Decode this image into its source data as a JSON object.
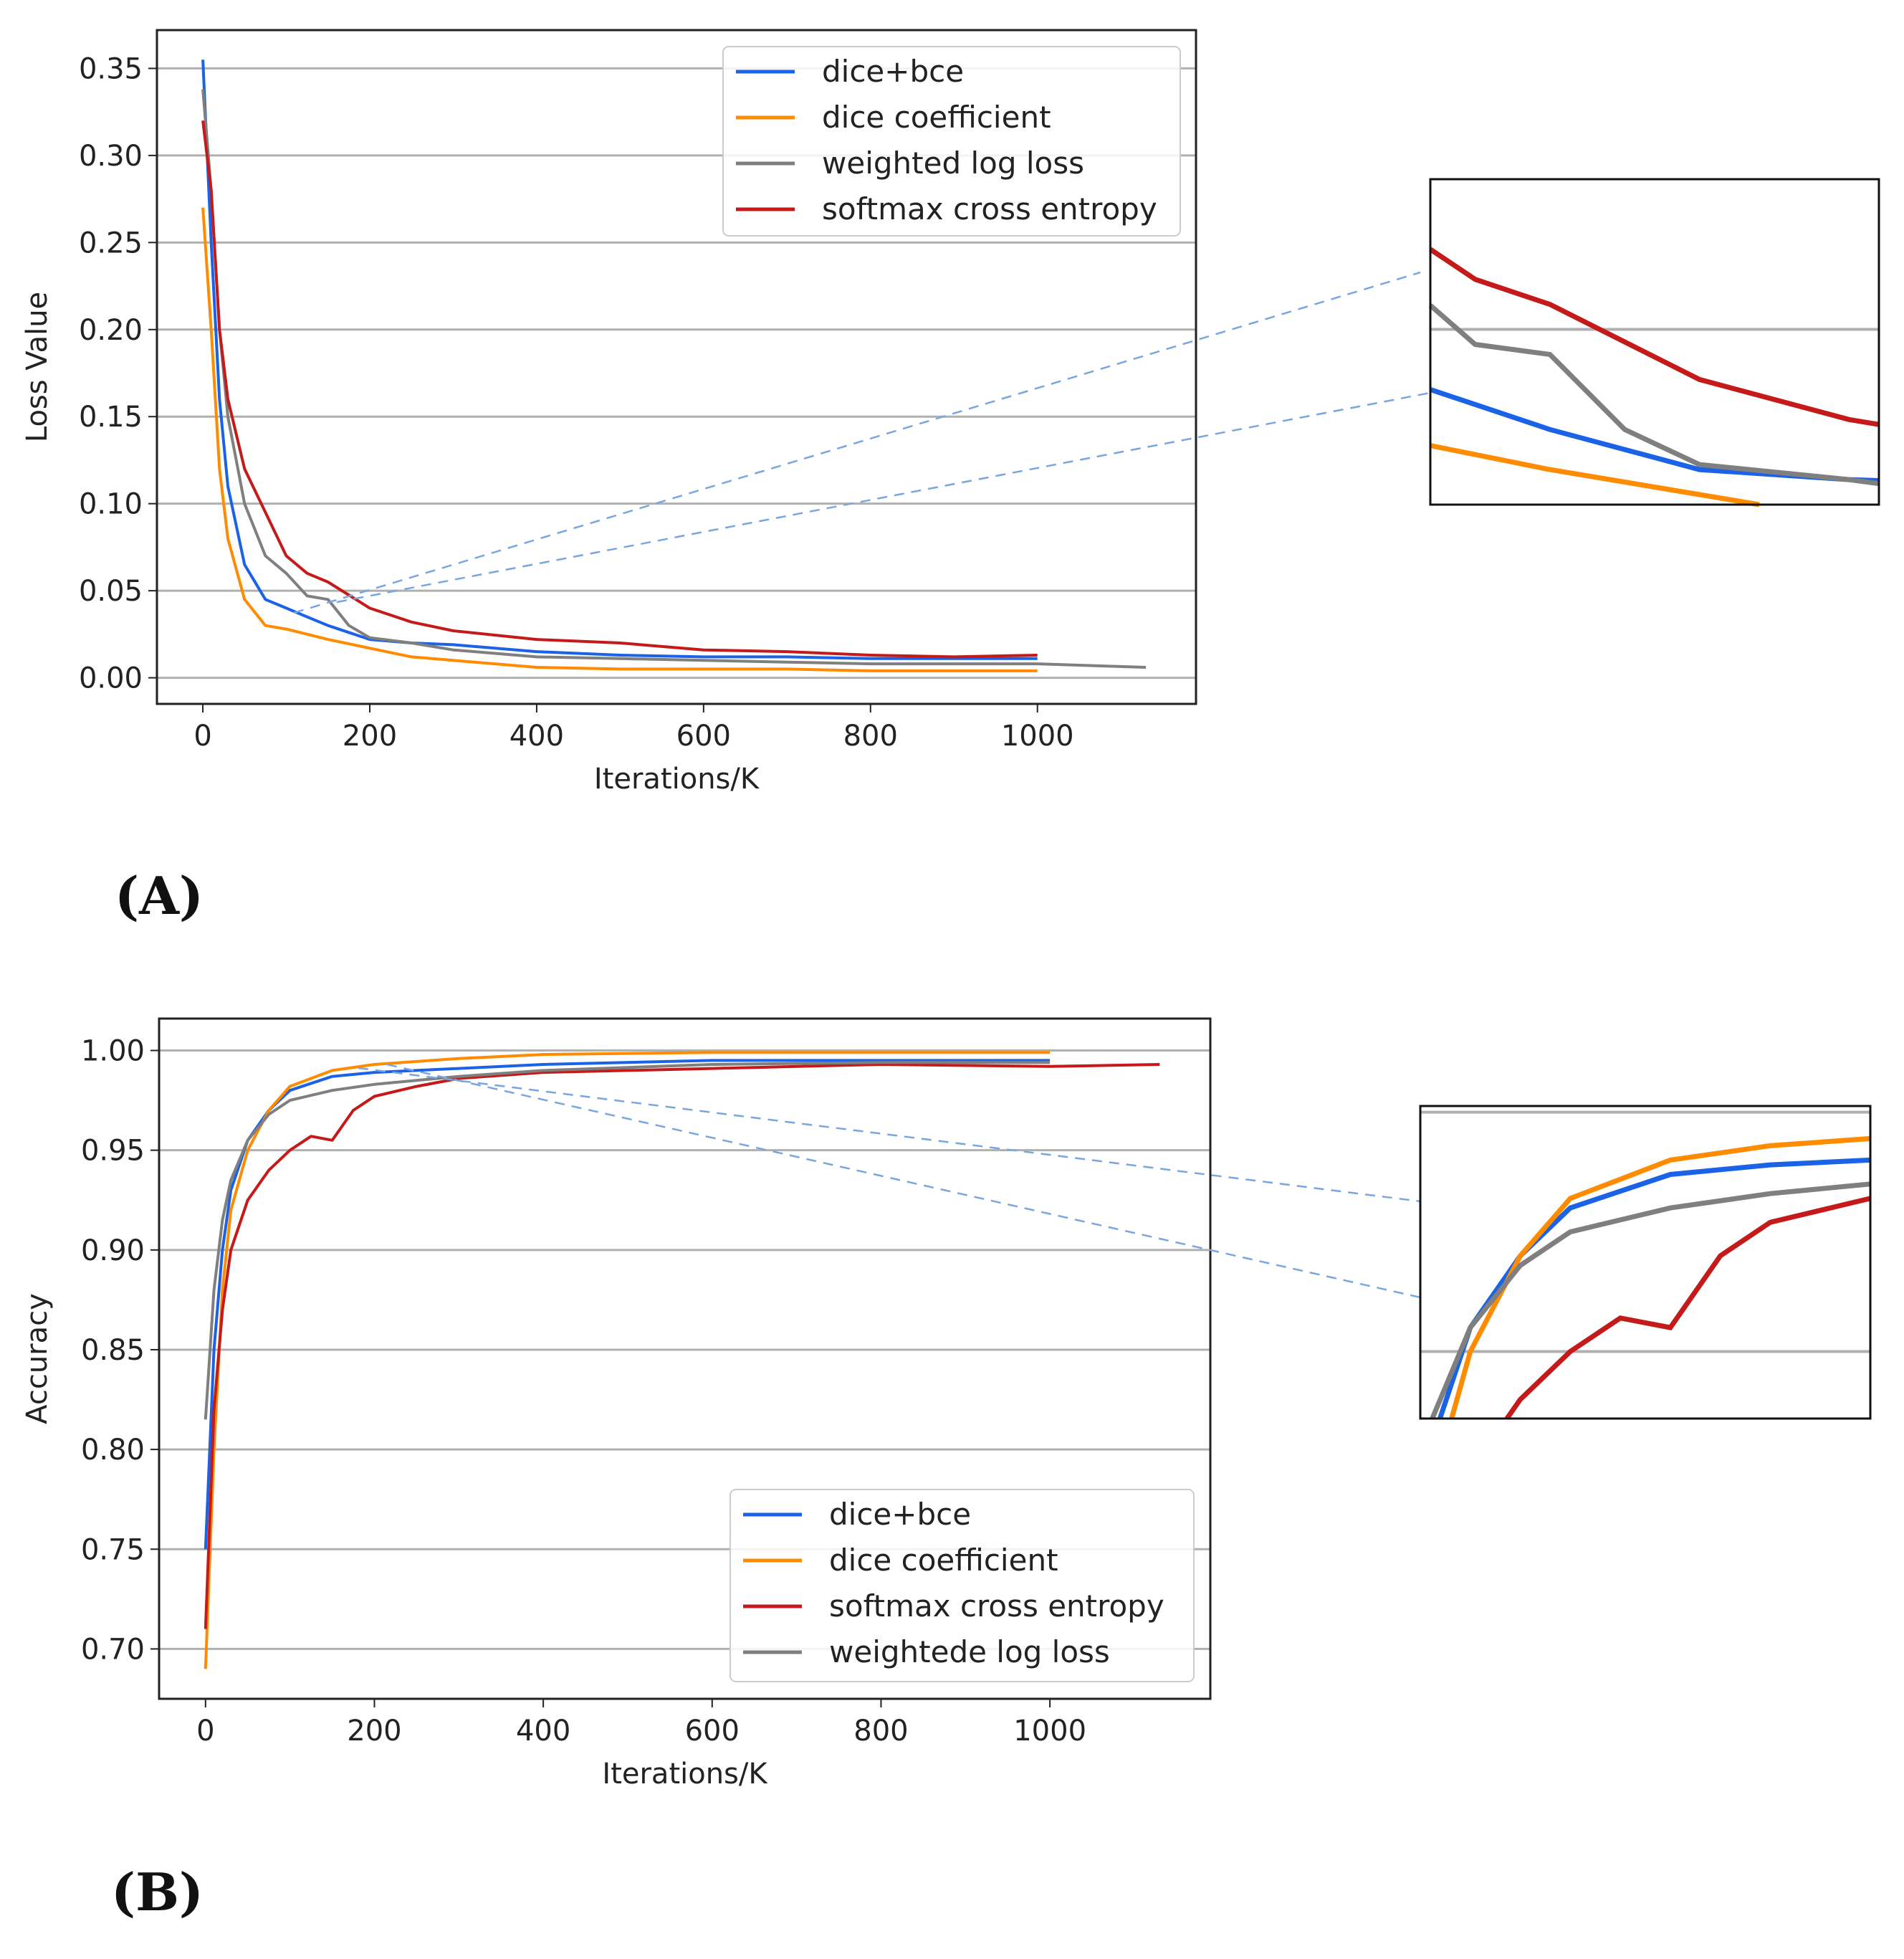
{
  "chart_data": [
    {
      "panel_label": "(A)",
      "type": "line",
      "xlabel": "Iterations/K",
      "ylabel": "Loss Value",
      "xlim": [
        -55,
        1190
      ],
      "ylim": [
        -0.015,
        0.372
      ],
      "xticks": [
        0,
        200,
        400,
        600,
        800,
        1000
      ],
      "yticks": [
        0.0,
        0.05,
        0.1,
        0.15,
        0.2,
        0.25,
        0.3,
        0.35
      ],
      "ytick_labels": [
        "0.00",
        "0.05",
        "0.10",
        "0.15",
        "0.20",
        "0.25",
        "0.30",
        "0.35"
      ],
      "grid": "horizontal",
      "legend": "top-right",
      "inset": {
        "xlim": [
          110,
          260
        ],
        "ylim": [
          0.015,
          0.08
        ],
        "position": "right, outside"
      },
      "series": [
        {
          "name": "dice+bce",
          "color": "#1a62e6",
          "x": [
            0,
            10,
            20,
            30,
            50,
            75,
            100,
            125,
            150,
            200,
            250,
            300,
            400,
            500,
            600,
            700,
            800,
            900,
            1000
          ],
          "y": [
            0.355,
            0.25,
            0.16,
            0.11,
            0.065,
            0.045,
            0.04,
            0.035,
            0.03,
            0.022,
            0.02,
            0.019,
            0.015,
            0.013,
            0.012,
            0.012,
            0.011,
            0.011,
            0.011
          ]
        },
        {
          "name": "dice coefficient",
          "color": "#ff8c00",
          "x": [
            0,
            10,
            20,
            30,
            50,
            75,
            100,
            150,
            200,
            250,
            300,
            400,
            500,
            600,
            700,
            800,
            900,
            1000
          ],
          "y": [
            0.27,
            0.2,
            0.12,
            0.08,
            0.045,
            0.03,
            0.028,
            0.022,
            0.017,
            0.012,
            0.01,
            0.006,
            0.005,
            0.005,
            0.005,
            0.004,
            0.004,
            0.004
          ]
        },
        {
          "name": "weighted log loss",
          "color": "#7f7f7f",
          "x": [
            0,
            10,
            20,
            30,
            50,
            75,
            100,
            125,
            150,
            175,
            200,
            250,
            300,
            400,
            500,
            600,
            700,
            800,
            900,
            1000,
            1130
          ],
          "y": [
            0.338,
            0.28,
            0.2,
            0.15,
            0.1,
            0.07,
            0.06,
            0.047,
            0.045,
            0.03,
            0.023,
            0.02,
            0.016,
            0.012,
            0.011,
            0.01,
            0.009,
            0.008,
            0.008,
            0.008,
            0.006
          ]
        },
        {
          "name": "softmax cross entropy",
          "color": "#c41a1a",
          "x": [
            0,
            10,
            20,
            30,
            50,
            75,
            100,
            125,
            150,
            200,
            250,
            300,
            400,
            500,
            600,
            700,
            800,
            900,
            1000
          ],
          "y": [
            0.32,
            0.28,
            0.2,
            0.16,
            0.12,
            0.095,
            0.07,
            0.06,
            0.055,
            0.04,
            0.032,
            0.027,
            0.022,
            0.02,
            0.016,
            0.015,
            0.013,
            0.012,
            0.013
          ]
        }
      ]
    },
    {
      "panel_label": "(B)",
      "type": "line",
      "xlabel": "Iterations/K",
      "ylabel": "Accuracy",
      "xlim": [
        -55,
        1190
      ],
      "ylim": [
        0.675,
        1.016
      ],
      "xticks": [
        0,
        200,
        400,
        600,
        800,
        1000
      ],
      "yticks": [
        0.7,
        0.75,
        0.8,
        0.85,
        0.9,
        0.95,
        1.0
      ],
      "ytick_labels": [
        "0.70",
        "0.75",
        "0.80",
        "0.85",
        "0.90",
        "0.95",
        "1.00"
      ],
      "grid": "horizontal",
      "legend": "bottom-right",
      "inset": {
        "xlim": [
          25,
          250
        ],
        "ylim": [
          0.936,
          1.0013
        ],
        "position": "right, outside"
      },
      "series": [
        {
          "name": "dice+bce",
          "color": "#1a62e6",
          "x": [
            0,
            10,
            20,
            30,
            50,
            75,
            100,
            150,
            200,
            300,
            400,
            600,
            800,
            1000
          ],
          "y": [
            0.75,
            0.85,
            0.9,
            0.93,
            0.955,
            0.97,
            0.98,
            0.987,
            0.989,
            0.991,
            0.993,
            0.995,
            0.995,
            0.995
          ]
        },
        {
          "name": "dice coefficient",
          "color": "#ff8c00",
          "x": [
            0,
            10,
            20,
            30,
            50,
            75,
            100,
            150,
            200,
            300,
            400,
            600,
            800,
            1000
          ],
          "y": [
            0.69,
            0.8,
            0.88,
            0.92,
            0.95,
            0.97,
            0.982,
            0.99,
            0.993,
            0.996,
            0.998,
            0.999,
            0.999,
            0.999
          ]
        },
        {
          "name": "softmax cross entropy",
          "color": "#c41a1a",
          "x": [
            0,
            10,
            20,
            30,
            50,
            75,
            100,
            125,
            150,
            175,
            200,
            250,
            300,
            400,
            500,
            600,
            800,
            1000,
            1130
          ],
          "y": [
            0.71,
            0.82,
            0.87,
            0.9,
            0.925,
            0.94,
            0.95,
            0.957,
            0.955,
            0.97,
            0.977,
            0.982,
            0.986,
            0.989,
            0.99,
            0.991,
            0.993,
            0.992,
            0.993
          ]
        },
        {
          "name": "weightede log loss",
          "color": "#7f7f7f",
          "x": [
            0,
            10,
            20,
            30,
            50,
            75,
            100,
            150,
            200,
            300,
            400,
            600,
            800,
            1000
          ],
          "y": [
            0.815,
            0.88,
            0.915,
            0.935,
            0.955,
            0.968,
            0.975,
            0.98,
            0.983,
            0.987,
            0.99,
            0.993,
            0.994,
            0.994
          ]
        }
      ]
    }
  ]
}
